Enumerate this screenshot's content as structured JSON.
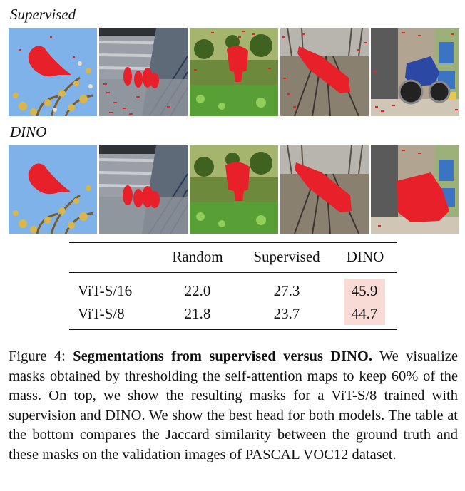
{
  "rows": [
    {
      "label": "Supervised"
    },
    {
      "label": "DINO"
    }
  ],
  "images": {
    "supervised": [
      "bird-mask",
      "ducks-mask",
      "elephant-mask",
      "train-mask",
      "motorbike-mask"
    ],
    "dino": [
      "bird-mask",
      "ducks-mask",
      "elephant-mask",
      "train-mask",
      "motorbike-mask"
    ]
  },
  "colors": {
    "mask": "#e8202a",
    "highlight": "#f8dbd5"
  },
  "table": {
    "headers": [
      "",
      "Random",
      "Supervised",
      "DINO"
    ],
    "rows": [
      {
        "model": "ViT-S/16",
        "random": "22.0",
        "supervised": "27.3",
        "dino": "45.9"
      },
      {
        "model": "ViT-S/8",
        "random": "21.8",
        "supervised": "23.7",
        "dino": "44.7"
      }
    ]
  },
  "caption": {
    "prefix": "Figure 4: ",
    "bold": "Segmentations from supervised versus DINO.",
    "rest": " We visualize masks obtained by thresholding the self-attention maps to keep 60% of the mass. On top, we show the resulting masks for a ViT-S/8 trained with supervision and DINO. We show the best head for both models. The table at the bottom compares the Jaccard similarity between the ground truth and these masks on the validation images of PASCAL VOC12 dataset."
  }
}
